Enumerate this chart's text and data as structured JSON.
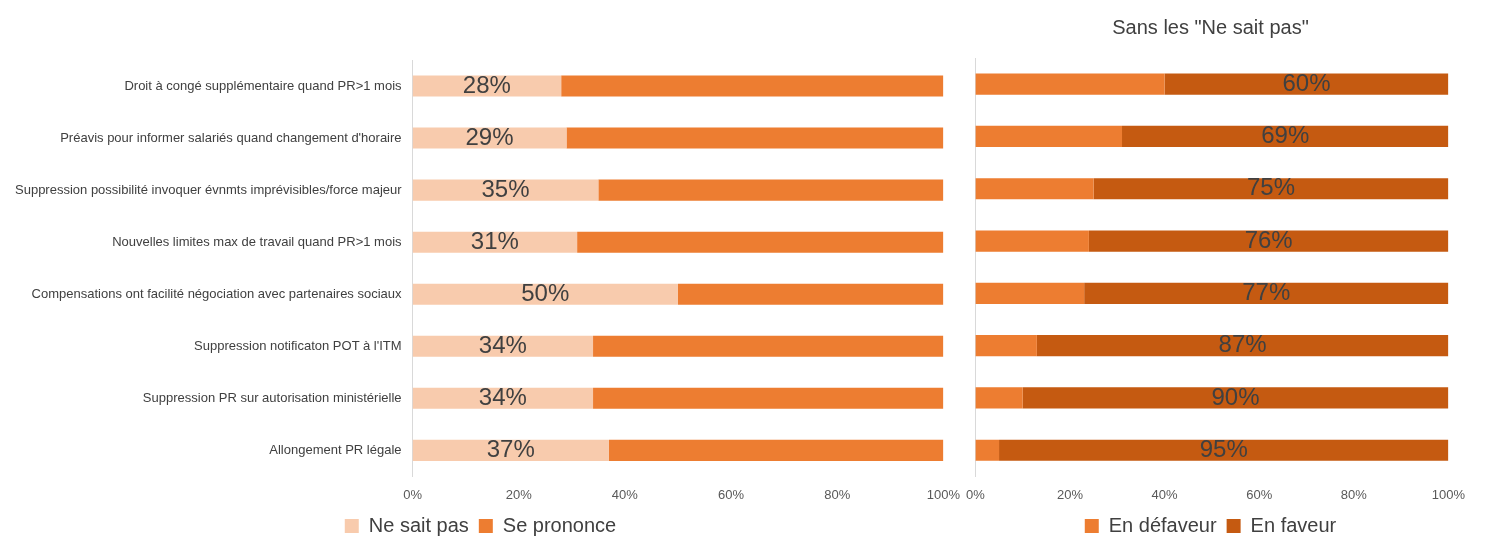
{
  "chart_data": [
    {
      "type": "bar",
      "orientation": "horizontal",
      "stacked": true,
      "categories": [
        "Droit à congé supplémentaire quand PR>1 mois",
        "Préavis pour informer salariés quand changement d'horaire",
        "Suppression possibilité invoquer évnmts imprévisibles/force majeur",
        "Nouvelles limites max de travail quand PR>1 mois",
        "Compensations ont facilité négociation avec partenaires sociaux",
        "Suppression notificaton POT à l'ITM",
        "Suppression PR sur autorisation ministérielle",
        "Allongement PR légale"
      ],
      "series": [
        {
          "name": "Ne sait pas",
          "color": "#f8cbad",
          "values": [
            28,
            29,
            35,
            31,
            50,
            34,
            34,
            37
          ],
          "value_labels": [
            "28%",
            "29%",
            "35%",
            "31%",
            "50%",
            "34%",
            "34%",
            "37%"
          ]
        },
        {
          "name": "Se prononce",
          "color": "#ed7d31",
          "values": [
            72,
            71,
            65,
            69,
            50,
            66,
            66,
            63
          ]
        }
      ],
      "xlim": [
        0,
        100
      ],
      "xticks": [
        {
          "value": 0,
          "label": "0%"
        },
        {
          "value": 20,
          "label": "20%"
        },
        {
          "value": 40,
          "label": "40%"
        },
        {
          "value": 60,
          "label": "60%"
        },
        {
          "value": 80,
          "label": "80%"
        },
        {
          "value": 100,
          "label": "100%"
        }
      ],
      "legend": "bottom"
    },
    {
      "type": "bar",
      "orientation": "horizontal",
      "stacked": true,
      "title": "Sans les \"Ne sait pas\"",
      "categories": [
        null,
        null,
        null,
        null,
        null,
        null,
        null,
        null
      ],
      "series": [
        {
          "name": "En défaveur",
          "color": "#ed7d31",
          "values": [
            40,
            31,
            25,
            24,
            23,
            13,
            10,
            5
          ]
        },
        {
          "name": "En faveur",
          "color": "#c55a11",
          "values": [
            60,
            69,
            75,
            76,
            77,
            87,
            90,
            95
          ],
          "value_labels": [
            "60%",
            "69%",
            "75%",
            "76%",
            "77%",
            "87%",
            "90%",
            "95%"
          ]
        }
      ],
      "xlim": [
        0,
        100
      ],
      "xticks": [
        {
          "value": 0,
          "label": "0%"
        },
        {
          "value": 20,
          "label": "20%"
        },
        {
          "value": 40,
          "label": "40%"
        },
        {
          "value": 60,
          "label": "60%"
        },
        {
          "value": 80,
          "label": "80%"
        },
        {
          "value": 100,
          "label": "100%"
        }
      ],
      "tick_labels": "x",
      "legend": "bottom"
    }
  ]
}
